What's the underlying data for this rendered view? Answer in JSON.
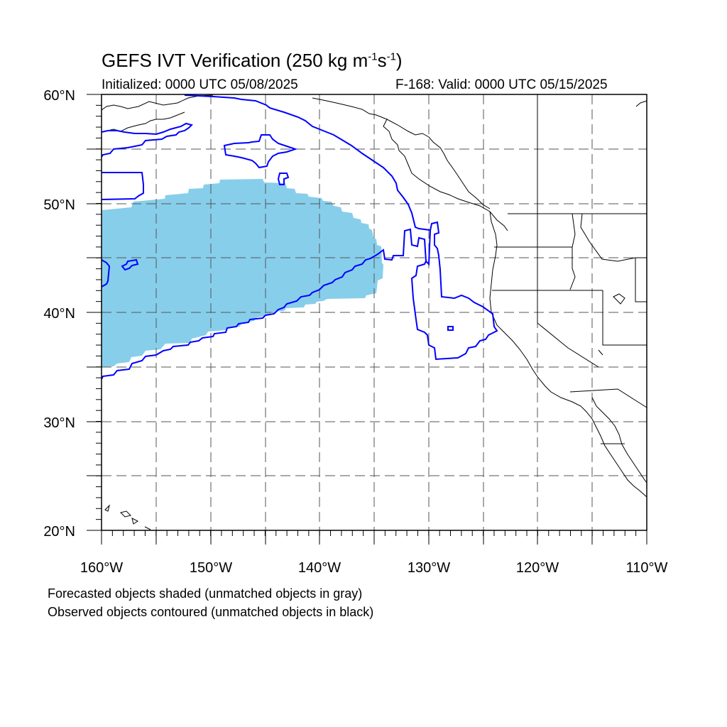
{
  "title": {
    "main": "GEFS IVT Verification (250 kg m",
    "exp1": "-1",
    "mid": "s",
    "exp2": "-1",
    "close": ")"
  },
  "subtitle": {
    "initialized": "Initialized: 0000 UTC 05/08/2025",
    "valid": "F-168: Valid: 0000 UTC 05/15/2025"
  },
  "map": {
    "lon_range": [
      -160,
      -110
    ],
    "lat_range": [
      20,
      60
    ],
    "lon_ticks": [
      "160°W",
      "150°W",
      "140°W",
      "130°W",
      "120°W",
      "110°W"
    ],
    "lat_ticks": [
      "20°N",
      "30°N",
      "40°N",
      "50°N",
      "60°N"
    ],
    "forecast_fill_color": "#87ceeb",
    "observed_contour_color": "#0000ff",
    "grid": true,
    "grid_style": "dashed"
  },
  "legend": {
    "line1": "Forecasted objects shaded (unmatched objects in gray)",
    "line2": "Observed objects contoured (unmatched objects in black)"
  }
}
